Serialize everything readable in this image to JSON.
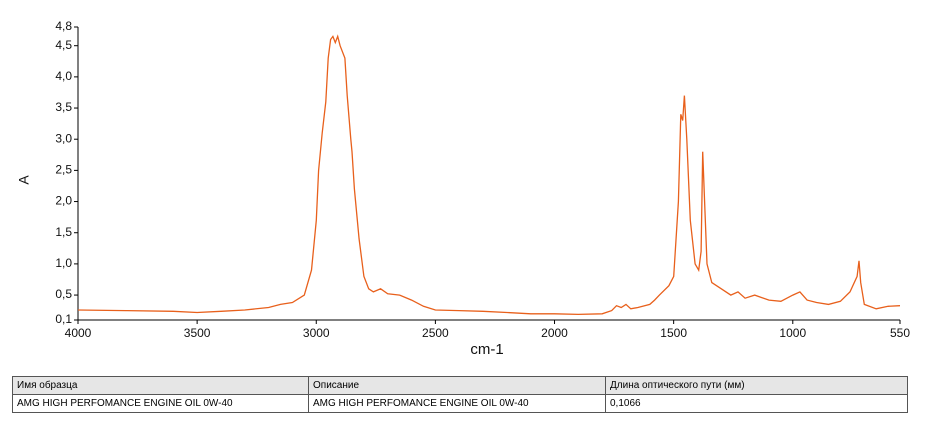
{
  "chart_data": {
    "type": "line",
    "xlabel": "cm-1",
    "ylabel": "A",
    "x": [
      4000,
      3800,
      3600,
      3500,
      3400,
      3300,
      3200,
      3150,
      3100,
      3050,
      3020,
      3000,
      2990,
      2975,
      2960,
      2950,
      2940,
      2930,
      2920,
      2910,
      2900,
      2880,
      2870,
      2855,
      2850,
      2840,
      2820,
      2800,
      2780,
      2760,
      2730,
      2700,
      2650,
      2600,
      2550,
      2500,
      2400,
      2300,
      2200,
      2100,
      2000,
      1900,
      1800,
      1760,
      1740,
      1720,
      1700,
      1680,
      1650,
      1600,
      1580,
      1560,
      1520,
      1500,
      1480,
      1470,
      1462,
      1455,
      1445,
      1430,
      1410,
      1395,
      1385,
      1378,
      1370,
      1360,
      1340,
      1300,
      1260,
      1230,
      1200,
      1160,
      1100,
      1050,
      1000,
      970,
      940,
      900,
      850,
      800,
      760,
      730,
      722,
      715,
      700,
      650,
      600,
      550
    ],
    "values": [
      0.26,
      0.25,
      0.24,
      0.22,
      0.24,
      0.26,
      0.3,
      0.35,
      0.38,
      0.5,
      0.9,
      1.7,
      2.5,
      3.1,
      3.6,
      4.3,
      4.6,
      4.65,
      4.55,
      4.65,
      4.5,
      4.3,
      3.7,
      3.0,
      2.8,
      2.2,
      1.4,
      0.8,
      0.6,
      0.55,
      0.6,
      0.52,
      0.5,
      0.42,
      0.32,
      0.26,
      0.25,
      0.24,
      0.22,
      0.2,
      0.2,
      0.19,
      0.2,
      0.25,
      0.33,
      0.3,
      0.35,
      0.28,
      0.3,
      0.35,
      0.42,
      0.5,
      0.65,
      0.8,
      2.0,
      3.4,
      3.3,
      3.7,
      3.0,
      1.7,
      1.0,
      0.9,
      1.2,
      2.8,
      2.0,
      1.0,
      0.7,
      0.6,
      0.5,
      0.55,
      0.45,
      0.5,
      0.42,
      0.4,
      0.5,
      0.55,
      0.42,
      0.38,
      0.35,
      0.4,
      0.55,
      0.8,
      1.05,
      0.7,
      0.35,
      0.28,
      0.32,
      0.33
    ],
    "color": "#e8601c",
    "xlim": [
      4000,
      550
    ],
    "xticks": [
      4000,
      3500,
      3000,
      2500,
      2000,
      1500,
      1000,
      550
    ],
    "ylim": [
      0.1,
      4.8
    ],
    "yticks": [
      {
        "value": 0.1,
        "label": "0,1"
      },
      {
        "value": 0.5,
        "label": "0,5"
      },
      {
        "value": 1.0,
        "label": "1,0"
      },
      {
        "value": 1.5,
        "label": "1,5"
      },
      {
        "value": 2.0,
        "label": "2,0"
      },
      {
        "value": 2.5,
        "label": "2,5"
      },
      {
        "value": 3.0,
        "label": "3,0"
      },
      {
        "value": 3.5,
        "label": "3,5"
      },
      {
        "value": 4.0,
        "label": "4,0"
      },
      {
        "value": 4.5,
        "label": "4,5"
      },
      {
        "value": 4.8,
        "label": "4,8"
      }
    ]
  },
  "table": {
    "columns": [
      "Имя образца",
      "Описание",
      "Длина оптического пути (мм)"
    ],
    "rows": [
      [
        "AMG HIGH PERFOMANCE ENGINE OIL 0W-40",
        "AMG HIGH PERFOMANCE ENGINE OIL 0W-40",
        "0,1066"
      ]
    ]
  }
}
